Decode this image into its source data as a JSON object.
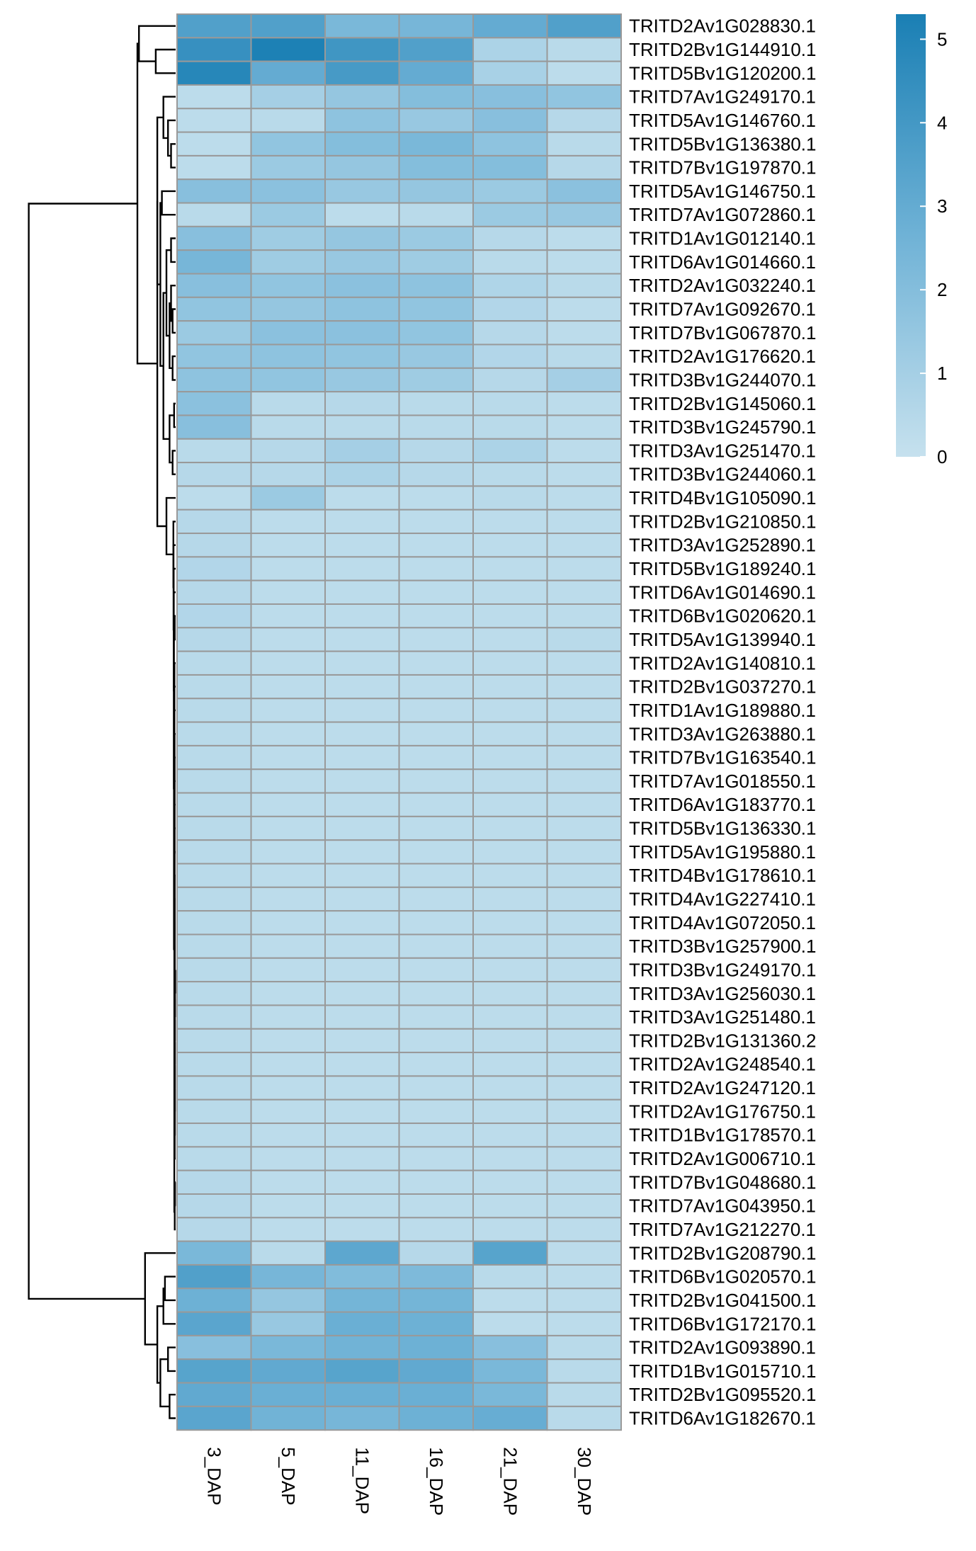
{
  "chart_data": {
    "type": "heatmap",
    "title": "",
    "columns": [
      "3_DAP",
      "5_DAP",
      "11_DAP",
      "16_DAP",
      "21_DAP",
      "30_DAP"
    ],
    "rows": [
      "TRITD2Av1G028830.1",
      "TRITD2Bv1G144910.1",
      "TRITD5Bv1G120200.1",
      "TRITD7Av1G249170.1",
      "TRITD5Av1G146760.1",
      "TRITD5Bv1G136380.1",
      "TRITD7Bv1G197870.1",
      "TRITD5Av1G146750.1",
      "TRITD7Av1G072860.1",
      "TRITD1Av1G012140.1",
      "TRITD6Av1G014660.1",
      "TRITD2Av1G032240.1",
      "TRITD7Av1G092670.1",
      "TRITD7Bv1G067870.1",
      "TRITD2Av1G176620.1",
      "TRITD3Bv1G244070.1",
      "TRITD2Bv1G145060.1",
      "TRITD3Bv1G245790.1",
      "TRITD3Av1G251470.1",
      "TRITD3Bv1G244060.1",
      "TRITD4Bv1G105090.1",
      "TRITD2Bv1G210850.1",
      "TRITD3Av1G252890.1",
      "TRITD5Bv1G189240.1",
      "TRITD6Av1G014690.1",
      "TRITD6Bv1G020620.1",
      "TRITD5Av1G139940.1",
      "TRITD2Av1G140810.1",
      "TRITD2Bv1G037270.1",
      "TRITD1Av1G189880.1",
      "TRITD3Av1G263880.1",
      "TRITD7Bv1G163540.1",
      "TRITD7Av1G018550.1",
      "TRITD6Av1G183770.1",
      "TRITD5Bv1G136330.1",
      "TRITD5Av1G195880.1",
      "TRITD4Bv1G178610.1",
      "TRITD4Av1G227410.1",
      "TRITD4Av1G072050.1",
      "TRITD3Bv1G257900.1",
      "TRITD3Bv1G249170.1",
      "TRITD3Av1G256030.1",
      "TRITD3Av1G251480.1",
      "TRITD2Bv1G131360.2",
      "TRITD2Av1G248540.1",
      "TRITD2Av1G247120.1",
      "TRITD2Av1G176750.1",
      "TRITD1Bv1G178570.1",
      "TRITD2Av1G006710.1",
      "TRITD7Bv1G048680.1",
      "TRITD7Av1G043950.1",
      "TRITD7Av1G212270.1",
      "TRITD2Bv1G208790.1",
      "TRITD6Bv1G020570.1",
      "TRITD2Bv1G041500.1",
      "TRITD6Bv1G172170.1",
      "TRITD2Av1G093890.1",
      "TRITD1Bv1G015710.1",
      "TRITD2Bv1G095520.1",
      "TRITD6Av1G182670.1"
    ],
    "values": [
      [
        3.6,
        3.6,
        2.3,
        2.4,
        3.0,
        3.6
      ],
      [
        4.4,
        5.2,
        4.1,
        3.6,
        0.8,
        0.4
      ],
      [
        4.9,
        3.0,
        3.9,
        3.0,
        0.9,
        0.3
      ],
      [
        0.3,
        1.0,
        1.5,
        2.0,
        1.9,
        1.6
      ],
      [
        0.3,
        0.4,
        1.7,
        1.4,
        1.9,
        0.5
      ],
      [
        0.3,
        1.6,
        2.0,
        2.3,
        1.7,
        0.4
      ],
      [
        0.3,
        1.3,
        1.5,
        2.0,
        2.0,
        0.5
      ],
      [
        1.9,
        1.8,
        1.4,
        1.5,
        1.3,
        1.8
      ],
      [
        0.4,
        1.3,
        0.3,
        0.4,
        1.3,
        1.4
      ],
      [
        1.9,
        1.2,
        1.5,
        1.3,
        0.5,
        0.3
      ],
      [
        2.4,
        1.2,
        1.4,
        1.2,
        0.4,
        0.3
      ],
      [
        1.9,
        1.6,
        1.8,
        1.7,
        0.7,
        0.4
      ],
      [
        1.6,
        1.5,
        1.7,
        1.6,
        0.6,
        0.3
      ],
      [
        1.3,
        1.8,
        1.8,
        1.6,
        0.5,
        0.3
      ],
      [
        1.6,
        1.7,
        1.6,
        1.4,
        0.6,
        0.4
      ],
      [
        1.7,
        1.6,
        1.4,
        1.2,
        0.5,
        1.0
      ],
      [
        1.8,
        0.4,
        0.5,
        0.4,
        0.4,
        0.3
      ],
      [
        1.9,
        0.4,
        0.4,
        0.4,
        0.4,
        0.3
      ],
      [
        0.4,
        0.5,
        1.0,
        0.5,
        0.8,
        0.3
      ],
      [
        0.5,
        0.5,
        0.8,
        0.5,
        0.4,
        0.3
      ],
      [
        0.3,
        1.3,
        0.3,
        0.3,
        0.4,
        0.3
      ],
      [
        0.5,
        0.3,
        0.3,
        0.3,
        0.3,
        0.3
      ],
      [
        0.5,
        0.3,
        0.3,
        0.3,
        0.3,
        0.3
      ],
      [
        0.6,
        0.3,
        0.3,
        0.3,
        0.3,
        0.3
      ],
      [
        0.5,
        0.3,
        0.3,
        0.3,
        0.3,
        0.3
      ],
      [
        0.6,
        0.3,
        0.3,
        0.3,
        0.3,
        0.3
      ],
      [
        0.5,
        0.3,
        0.3,
        0.3,
        0.3,
        0.4
      ],
      [
        0.4,
        0.3,
        0.3,
        0.3,
        0.3,
        0.3
      ],
      [
        0.4,
        0.3,
        0.3,
        0.3,
        0.3,
        0.3
      ],
      [
        0.4,
        0.3,
        0.3,
        0.3,
        0.3,
        0.3
      ],
      [
        0.4,
        0.3,
        0.3,
        0.3,
        0.3,
        0.3
      ],
      [
        0.4,
        0.3,
        0.3,
        0.3,
        0.3,
        0.3
      ],
      [
        0.4,
        0.3,
        0.3,
        0.3,
        0.3,
        0.3
      ],
      [
        0.4,
        0.3,
        0.3,
        0.3,
        0.3,
        0.3
      ],
      [
        0.4,
        0.3,
        0.3,
        0.3,
        0.3,
        0.3
      ],
      [
        0.4,
        0.3,
        0.3,
        0.3,
        0.3,
        0.3
      ],
      [
        0.4,
        0.3,
        0.3,
        0.3,
        0.3,
        0.3
      ],
      [
        0.4,
        0.3,
        0.3,
        0.3,
        0.3,
        0.3
      ],
      [
        0.4,
        0.3,
        0.3,
        0.3,
        0.3,
        0.3
      ],
      [
        0.4,
        0.3,
        0.3,
        0.3,
        0.3,
        0.3
      ],
      [
        0.4,
        0.3,
        0.3,
        0.3,
        0.3,
        0.3
      ],
      [
        0.4,
        0.3,
        0.3,
        0.3,
        0.3,
        0.3
      ],
      [
        0.4,
        0.3,
        0.3,
        0.3,
        0.3,
        0.3
      ],
      [
        0.4,
        0.3,
        0.3,
        0.3,
        0.3,
        0.3
      ],
      [
        0.4,
        0.3,
        0.3,
        0.3,
        0.3,
        0.3
      ],
      [
        0.4,
        0.3,
        0.3,
        0.3,
        0.3,
        0.3
      ],
      [
        0.4,
        0.3,
        0.3,
        0.3,
        0.3,
        0.3
      ],
      [
        0.4,
        0.3,
        0.3,
        0.3,
        0.3,
        0.3
      ],
      [
        0.4,
        0.3,
        0.3,
        0.3,
        0.3,
        0.3
      ],
      [
        0.5,
        0.3,
        0.3,
        0.3,
        0.3,
        0.3
      ],
      [
        0.5,
        0.3,
        0.3,
        0.3,
        0.3,
        0.3
      ],
      [
        0.5,
        0.3,
        0.3,
        0.3,
        0.3,
        0.3
      ],
      [
        2.3,
        0.4,
        3.2,
        0.5,
        3.4,
        0.3
      ],
      [
        3.6,
        2.4,
        2.1,
        2.2,
        0.4,
        0.3
      ],
      [
        2.7,
        1.5,
        2.5,
        2.5,
        0.3,
        0.3
      ],
      [
        3.3,
        1.4,
        2.8,
        2.7,
        0.3,
        0.3
      ],
      [
        1.9,
        2.3,
        2.6,
        2.7,
        1.9,
        0.4
      ],
      [
        3.4,
        3.1,
        3.4,
        3.1,
        2.3,
        0.4
      ],
      [
        3.1,
        2.8,
        2.8,
        2.8,
        2.3,
        0.4
      ],
      [
        3.3,
        2.6,
        2.4,
        2.7,
        2.9,
        0.4
      ]
    ],
    "color_scale": {
      "min": 0,
      "max": 5.3,
      "low_color": "#c6e1ee",
      "mid_color": "#6fb2d6",
      "high_color": "#1a7fb4",
      "ticks": [
        0,
        1,
        2,
        3,
        4,
        5
      ]
    },
    "cell_border_color": "#999999",
    "dendrogram": "rows"
  }
}
